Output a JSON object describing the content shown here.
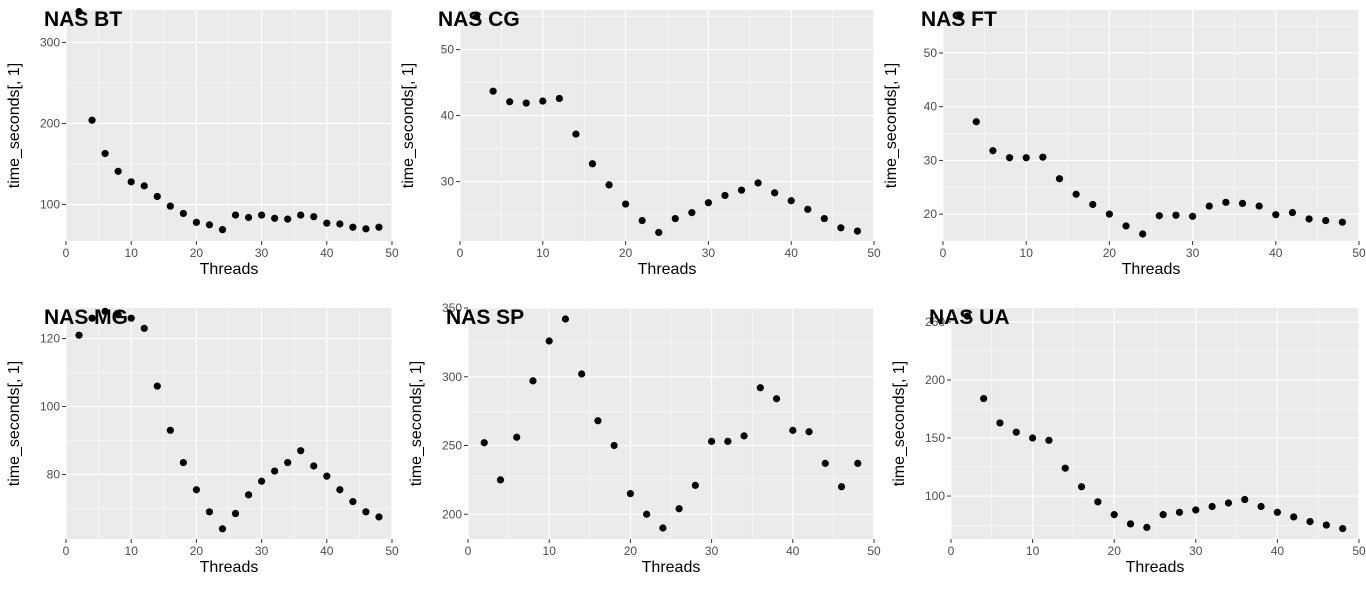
{
  "chart_data": [
    {
      "type": "scatter",
      "title": "NAS BT",
      "xlabel": "Threads",
      "ylabel": "time_seconds[, 1]",
      "xlim": [
        0,
        50
      ],
      "ylim": [
        55,
        340
      ],
      "xticks": [
        0,
        10,
        20,
        30,
        40,
        50
      ],
      "yticks": [
        100,
        200,
        300
      ],
      "grid": true,
      "x": [
        2,
        4,
        6,
        8,
        10,
        12,
        14,
        16,
        18,
        20,
        22,
        24,
        26,
        28,
        30,
        32,
        34,
        36,
        38,
        40,
        42,
        44,
        46,
        48
      ],
      "y": [
        338,
        204,
        163,
        141,
        128,
        123,
        110,
        98,
        89,
        78,
        75,
        69,
        87,
        84,
        87,
        83,
        82,
        87,
        85,
        77,
        76,
        72,
        70,
        72
      ]
    },
    {
      "type": "scatter",
      "title": "NAS CG",
      "xlabel": "Threads",
      "ylabel": "time_seconds[, 1]",
      "xlim": [
        0,
        50
      ],
      "ylim": [
        21,
        56
      ],
      "xticks": [
        0,
        10,
        20,
        30,
        40,
        50
      ],
      "yticks": [
        30,
        40,
        50
      ],
      "grid": true,
      "x": [
        2,
        4,
        6,
        8,
        10,
        12,
        14,
        16,
        18,
        20,
        22,
        24,
        26,
        28,
        30,
        32,
        34,
        36,
        38,
        40,
        42,
        44,
        46,
        48
      ],
      "y": [
        55,
        43.7,
        42.1,
        41.9,
        42.2,
        42.6,
        37.2,
        32.7,
        29.5,
        26.6,
        24.1,
        22.3,
        24.4,
        25.3,
        26.8,
        27.9,
        28.7,
        29.8,
        28.3,
        27.1,
        25.8,
        24.4,
        23.0,
        22.5
      ]
    },
    {
      "type": "scatter",
      "title": "NAS FT",
      "xlabel": "Threads",
      "ylabel": "time_seconds[, 1]",
      "xlim": [
        0,
        50
      ],
      "ylim": [
        15,
        58
      ],
      "xticks": [
        0,
        10,
        20,
        30,
        40,
        50
      ],
      "yticks": [
        20,
        30,
        40,
        50
      ],
      "grid": true,
      "x": [
        2,
        4,
        6,
        8,
        10,
        12,
        14,
        16,
        18,
        20,
        22,
        24,
        26,
        28,
        30,
        32,
        34,
        36,
        38,
        40,
        42,
        44,
        46,
        48
      ],
      "y": [
        57,
        37.2,
        31.8,
        30.5,
        30.5,
        30.6,
        26.6,
        23.7,
        21.8,
        20.0,
        17.8,
        16.3,
        19.7,
        19.8,
        19.6,
        21.5,
        22.2,
        22.0,
        21.5,
        19.9,
        20.3,
        19.1,
        18.8,
        18.5
      ]
    },
    {
      "type": "scatter",
      "title": "NAS MG",
      "xlabel": "Threads",
      "ylabel": "time_seconds[, 1]",
      "xlim": [
        0,
        50
      ],
      "ylim": [
        61,
        129
      ],
      "xticks": [
        0,
        10,
        20,
        30,
        40,
        50
      ],
      "yticks": [
        80,
        100,
        120
      ],
      "grid": true,
      "x": [
        2,
        4,
        6,
        8,
        10,
        12,
        14,
        16,
        18,
        20,
        22,
        24,
        26,
        28,
        30,
        32,
        34,
        36,
        38,
        40,
        42,
        44,
        46,
        48
      ],
      "y": [
        121,
        126,
        128,
        127,
        126,
        123,
        106,
        93,
        83.5,
        75.5,
        69,
        64,
        68.5,
        74,
        78,
        81,
        83.5,
        87,
        82.5,
        79.5,
        75.5,
        72,
        69,
        67.5
      ]
    },
    {
      "type": "scatter",
      "title": "NAS SP",
      "xlabel": "Threads",
      "ylabel": "time_seconds[, 1]",
      "xlim": [
        0,
        50
      ],
      "ylim": [
        182,
        350
      ],
      "xticks": [
        0,
        10,
        20,
        30,
        40,
        50
      ],
      "yticks": [
        200,
        250,
        300,
        350
      ],
      "grid": true,
      "x": [
        2,
        4,
        6,
        8,
        10,
        12,
        14,
        16,
        18,
        20,
        22,
        24,
        26,
        28,
        30,
        32,
        34,
        36,
        38,
        40,
        42,
        44,
        46,
        48
      ],
      "y": [
        252,
        225,
        256,
        297,
        326,
        342,
        302,
        268,
        250,
        215,
        200,
        190,
        204,
        221,
        253,
        253,
        257,
        292,
        284,
        261,
        260,
        237,
        220,
        237
      ]
    },
    {
      "type": "scatter",
      "title": "NAS UA",
      "xlabel": "Threads",
      "ylabel": "time_seconds[, 1]",
      "xlim": [
        0,
        50
      ],
      "ylim": [
        63,
        262
      ],
      "xticks": [
        0,
        10,
        20,
        30,
        40,
        50
      ],
      "yticks": [
        100,
        150,
        200,
        250
      ],
      "grid": true,
      "x": [
        2,
        4,
        6,
        8,
        10,
        12,
        14,
        16,
        18,
        20,
        22,
        24,
        26,
        28,
        30,
        32,
        34,
        36,
        38,
        40,
        42,
        44,
        46,
        48
      ],
      "y": [
        255,
        184,
        163,
        155,
        150,
        148,
        124,
        108,
        95,
        84,
        76,
        73,
        84,
        86,
        88,
        91,
        94,
        97,
        91,
        86,
        82,
        78,
        75,
        72
      ]
    }
  ]
}
